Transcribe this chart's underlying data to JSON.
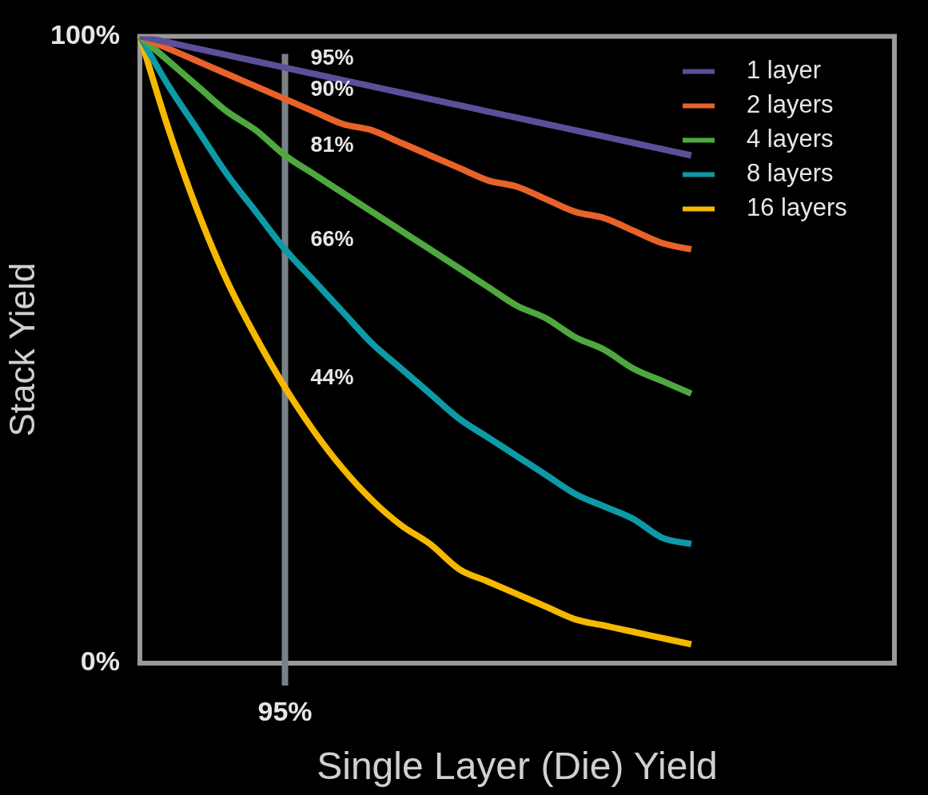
{
  "chart_data": {
    "type": "line",
    "xlabel": "Single Layer (Die) Yield",
    "ylabel": "Stack Yield",
    "categories": [
      null,
      null,
      null,
      null,
      null,
      "95%",
      null,
      null,
      null,
      null,
      null,
      null,
      null,
      null,
      null,
      null,
      null,
      null,
      null,
      null,
      null,
      null,
      null,
      null,
      null,
      null,
      null
    ],
    "ylim": [
      0,
      100
    ],
    "yticks": [
      {
        "value": 0,
        "label": "0%"
      },
      {
        "value": 100,
        "label": "100%"
      }
    ],
    "series": [
      {
        "name": "1 layer",
        "color": "#5b4f9a",
        "values": [
          100,
          99,
          98,
          97,
          96,
          95,
          94,
          93,
          92,
          91,
          90,
          89,
          88,
          87,
          86,
          85,
          84,
          83,
          82,
          81,
          null,
          null,
          null,
          null,
          null,
          null,
          null
        ]
      },
      {
        "name": "2 layers",
        "color": "#e8622a",
        "values": [
          100,
          98,
          96,
          94,
          92,
          90,
          88,
          86,
          85,
          83,
          81,
          79,
          77,
          76,
          74,
          72,
          71,
          69,
          67,
          66,
          null,
          null,
          null,
          null,
          null,
          null,
          null
        ]
      },
      {
        "name": "4 layers",
        "color": "#4fa83f",
        "values": [
          100,
          96,
          92,
          88,
          85,
          81,
          78,
          75,
          72,
          69,
          66,
          63,
          60,
          57,
          55,
          52,
          50,
          47,
          45,
          43,
          null,
          null,
          null,
          null,
          null,
          null,
          null
        ]
      },
      {
        "name": "8 layers",
        "color": "#0d9aa6",
        "values": [
          100,
          92,
          85,
          78,
          72,
          66,
          61,
          56,
          51,
          47,
          43,
          39,
          36,
          33,
          30,
          27,
          25,
          23,
          20,
          19,
          null,
          null,
          null,
          null,
          null,
          null,
          null
        ]
      },
      {
        "name": "16 layers",
        "color": "#f5b800",
        "values": [
          100,
          85,
          72,
          61,
          52,
          44,
          37,
          31,
          26,
          22,
          19,
          15,
          13,
          11,
          9,
          7,
          6,
          5,
          4,
          3,
          null,
          null,
          null,
          null,
          null,
          null,
          null
        ]
      }
    ],
    "ref_lines": [
      {
        "axis": "x",
        "value": "95%",
        "color": "#7a8288"
      }
    ],
    "annotations": [
      {
        "text": "95%",
        "x": "95%",
        "y": 95
      },
      {
        "text": "90%",
        "x": "95%",
        "y": 90
      },
      {
        "text": "81%",
        "x": "95%",
        "y": 81
      },
      {
        "text": "66%",
        "x": "95%",
        "y": 66
      },
      {
        "text": "44%",
        "x": "95%",
        "y": 44
      }
    ],
    "grid": false,
    "legend": "top right",
    "marker": "none",
    "line_style": "solid"
  }
}
